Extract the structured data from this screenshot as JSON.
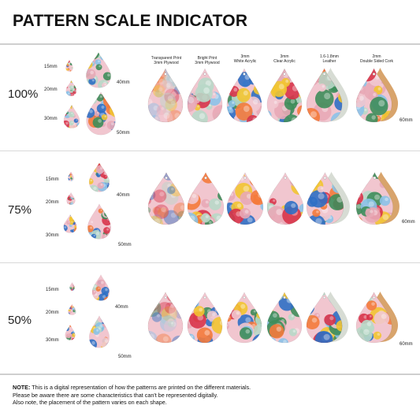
{
  "title": "PATTERN SCALE INDICATOR",
  "materials": [
    {
      "line1": "Transparent Print",
      "line2": "3mm Plywood"
    },
    {
      "line1": "Bright Print",
      "line2": "3mm Plywood"
    },
    {
      "line1": "3mm",
      "line2": "White Acrylic"
    },
    {
      "line1": "3mm",
      "line2": "Clear Acrylic"
    },
    {
      "line1": "1.6-1.8mm",
      "line2": "Leather"
    },
    {
      "line1": "2mm",
      "line2": "Double Sided Cork"
    }
  ],
  "sizes": {
    "s15": "15mm",
    "s20": "20mm",
    "s30": "30mm",
    "s40": "40mm",
    "s50": "50mm",
    "s60": "60mm"
  },
  "scales": [
    "100%",
    "75%",
    "50%"
  ],
  "note": {
    "bold": "NOTE:",
    "line1": " This is a digital representation of how the patterns are printed on the different materials.",
    "line2": "Please be aware there are some characteristics that can't be represented digitally.",
    "line3": "Also note, the placement of the pattern varies on each shape."
  },
  "colors": {
    "floral": [
      "#e8a9b6",
      "#f1c6cf",
      "#d8344a",
      "#2f6fc4",
      "#f2c431",
      "#3e8d5a",
      "#8bc2e8",
      "#f47a3b",
      "#b8d8c8"
    ],
    "wood": "#c9916a",
    "leather": "#d7dcd4",
    "cork": "#d8a46c"
  }
}
